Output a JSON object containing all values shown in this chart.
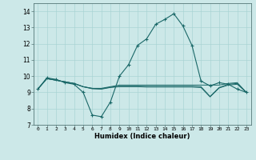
{
  "xlabel": "Humidex (Indice chaleur)",
  "xlim": [
    -0.5,
    23.5
  ],
  "ylim": [
    7,
    14.5
  ],
  "yticks": [
    7,
    8,
    9,
    10,
    11,
    12,
    13,
    14
  ],
  "xticks": [
    0,
    1,
    2,
    3,
    4,
    5,
    6,
    7,
    8,
    9,
    10,
    11,
    12,
    13,
    14,
    15,
    16,
    17,
    18,
    19,
    20,
    21,
    22,
    23
  ],
  "bg_color": "#cce8e8",
  "line_color": "#1a6868",
  "grid_color": "#aad4d4",
  "main_line": [
    9.2,
    9.9,
    9.8,
    9.6,
    9.5,
    9.0,
    7.6,
    7.5,
    8.4,
    10.0,
    10.7,
    11.9,
    12.3,
    13.2,
    13.5,
    13.85,
    13.1,
    11.9,
    9.7,
    9.4,
    9.6,
    9.5,
    9.2,
    9.0
  ],
  "extra_lines": [
    [
      9.2,
      9.85,
      9.75,
      9.65,
      9.55,
      9.35,
      9.25,
      9.25,
      9.35,
      9.45,
      9.45,
      9.45,
      9.45,
      9.45,
      9.45,
      9.45,
      9.45,
      9.45,
      9.45,
      9.45,
      9.45,
      9.55,
      9.6,
      9.0
    ],
    [
      9.2,
      9.85,
      9.75,
      9.65,
      9.55,
      9.35,
      9.25,
      9.22,
      9.32,
      9.38,
      9.38,
      9.38,
      9.37,
      9.37,
      9.37,
      9.37,
      9.37,
      9.37,
      9.35,
      8.75,
      9.3,
      9.5,
      9.55,
      9.0
    ],
    [
      9.2,
      9.85,
      9.75,
      9.65,
      9.55,
      9.35,
      9.22,
      9.2,
      9.3,
      9.35,
      9.35,
      9.35,
      9.33,
      9.33,
      9.33,
      9.33,
      9.33,
      9.33,
      9.3,
      8.72,
      9.27,
      9.45,
      9.5,
      9.0
    ]
  ]
}
